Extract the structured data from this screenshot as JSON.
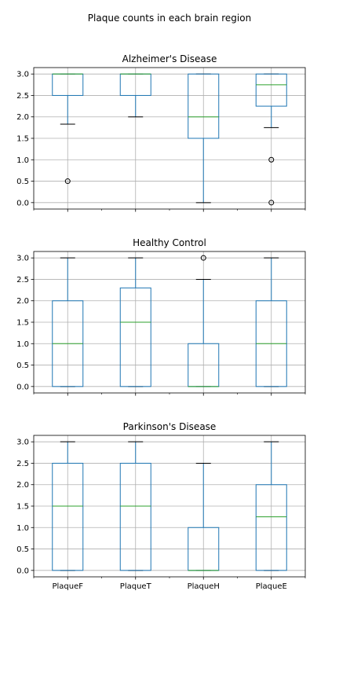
{
  "chart_data": {
    "type": "box",
    "title": "Plaque counts in each brain region",
    "categories": [
      "PlaqueF",
      "PlaqueT",
      "PlaqueH",
      "PlaqueE"
    ],
    "ylim": [
      -0.15,
      3.15
    ],
    "yticks": [
      "0.0",
      "0.5",
      "1.0",
      "1.5",
      "2.0",
      "2.5",
      "3.0"
    ],
    "grid": true,
    "colors": {
      "box": "#1f77b4",
      "median": "#2ca02c",
      "whisker": "#1f77b4",
      "cap": "#000000",
      "grid": "#b0b0b0",
      "outlier": "#000000"
    },
    "panels": [
      {
        "title": "Alzheimer's Disease",
        "boxes": [
          {
            "category": "PlaqueF",
            "whislo": 1.83,
            "q1": 2.5,
            "med": 3.0,
            "q3": 3.0,
            "whishi": 3.0,
            "fliers": [
              0.5
            ]
          },
          {
            "category": "PlaqueT",
            "whislo": 2.0,
            "q1": 2.5,
            "med": 3.0,
            "q3": 3.0,
            "whishi": 3.0,
            "fliers": []
          },
          {
            "category": "PlaqueH",
            "whislo": 0.0,
            "q1": 1.5,
            "med": 2.0,
            "q3": 3.0,
            "whishi": 3.0,
            "fliers": []
          },
          {
            "category": "PlaqueE",
            "whislo": 1.75,
            "q1": 2.25,
            "med": 2.75,
            "q3": 3.0,
            "whishi": 3.0,
            "fliers": [
              1.0,
              0.0
            ]
          }
        ]
      },
      {
        "title": "Healthy Control",
        "boxes": [
          {
            "category": "PlaqueF",
            "whislo": 0.0,
            "q1": 0.0,
            "med": 1.0,
            "q3": 2.0,
            "whishi": 3.0,
            "fliers": []
          },
          {
            "category": "PlaqueT",
            "whislo": 0.0,
            "q1": 0.0,
            "med": 1.5,
            "q3": 2.3,
            "whishi": 3.0,
            "fliers": []
          },
          {
            "category": "PlaqueH",
            "whislo": 0.0,
            "q1": 0.0,
            "med": 0.0,
            "q3": 1.0,
            "whishi": 2.5,
            "fliers": [
              3.0
            ]
          },
          {
            "category": "PlaqueE",
            "whislo": 0.0,
            "q1": 0.0,
            "med": 1.0,
            "q3": 2.0,
            "whishi": 3.0,
            "fliers": []
          }
        ]
      },
      {
        "title": "Parkinson's Disease",
        "boxes": [
          {
            "category": "PlaqueF",
            "whislo": 0.0,
            "q1": 0.0,
            "med": 1.5,
            "q3": 2.5,
            "whishi": 3.0,
            "fliers": []
          },
          {
            "category": "PlaqueT",
            "whislo": 0.0,
            "q1": 0.0,
            "med": 1.5,
            "q3": 2.5,
            "whishi": 3.0,
            "fliers": []
          },
          {
            "category": "PlaqueH",
            "whislo": 0.0,
            "q1": 0.0,
            "med": 0.0,
            "q3": 1.0,
            "whishi": 2.5,
            "fliers": []
          },
          {
            "category": "PlaqueE",
            "whislo": 0.0,
            "q1": 0.0,
            "med": 1.25,
            "q3": 2.0,
            "whishi": 3.0,
            "fliers": []
          }
        ]
      }
    ]
  }
}
